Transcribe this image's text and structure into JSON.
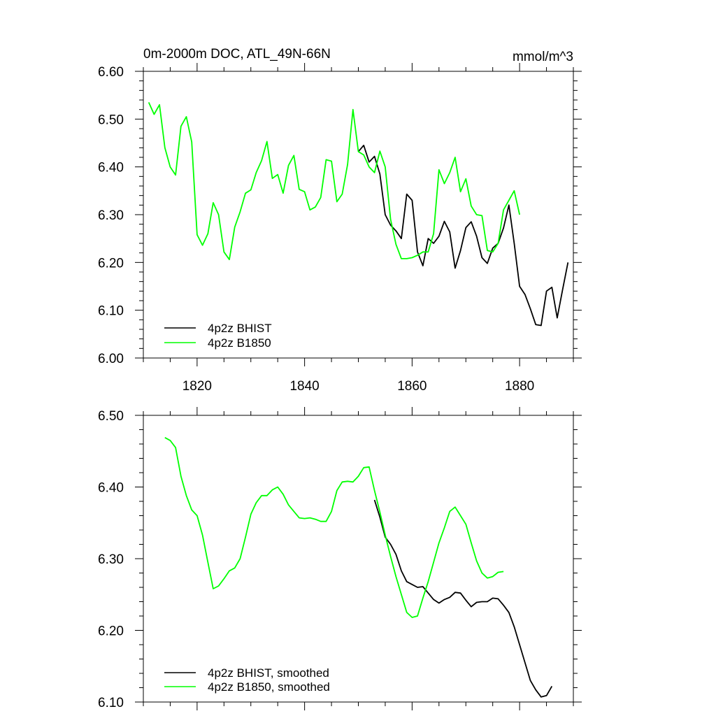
{
  "chart_data": [
    {
      "type": "line",
      "title": "0m-2000m DOC, ATL_49N-66N",
      "units": "mmol/m^3",
      "xlim": [
        1810,
        1890
      ],
      "ylim": [
        6.0,
        6.6
      ],
      "xticks": [
        1820,
        1840,
        1860,
        1880
      ],
      "xtick_labels": [
        "1820",
        "1840",
        "1860",
        "1880"
      ],
      "yticks": [
        6.0,
        6.1,
        6.2,
        6.3,
        6.4,
        6.5,
        6.6
      ],
      "ytick_labels": [
        "6.00",
        "6.10",
        "6.20",
        "6.30",
        "6.40",
        "6.50",
        "6.60"
      ],
      "legend_position": "bottom-left",
      "series": [
        {
          "name": "4p2z BHIST",
          "color": "#000000",
          "x": [
            1850,
            1851,
            1852,
            1853,
            1854,
            1855,
            1856,
            1857,
            1858,
            1859,
            1860,
            1861,
            1862,
            1863,
            1864,
            1865,
            1866,
            1867,
            1868,
            1869,
            1870,
            1871,
            1872,
            1873,
            1874,
            1875,
            1876,
            1877,
            1878,
            1879,
            1880,
            1881,
            1882,
            1883,
            1884,
            1885,
            1886,
            1887,
            1888,
            1889
          ],
          "values": [
            6.432,
            6.445,
            6.41,
            6.422,
            6.385,
            6.3,
            6.278,
            6.266,
            6.25,
            6.343,
            6.33,
            6.222,
            6.193,
            6.25,
            6.24,
            6.255,
            6.286,
            6.264,
            6.188,
            6.225,
            6.273,
            6.285,
            6.255,
            6.21,
            6.198,
            6.23,
            6.24,
            6.272,
            6.32,
            6.24,
            6.15,
            6.133,
            6.103,
            6.07,
            6.068,
            6.14,
            6.148,
            6.084,
            6.143,
            6.2
          ]
        },
        {
          "name": "4p2z B1850",
          "color": "#00ff00",
          "x": [
            1811,
            1812,
            1813,
            1814,
            1815,
            1816,
            1817,
            1818,
            1819,
            1820,
            1821,
            1822,
            1823,
            1824,
            1825,
            1826,
            1827,
            1828,
            1829,
            1830,
            1831,
            1832,
            1833,
            1834,
            1835,
            1836,
            1837,
            1838,
            1839,
            1840,
            1841,
            1842,
            1843,
            1844,
            1845,
            1846,
            1847,
            1848,
            1849,
            1850,
            1851,
            1852,
            1853,
            1854,
            1855,
            1856,
            1857,
            1858,
            1859,
            1860,
            1861,
            1862,
            1863,
            1864,
            1865,
            1866,
            1867,
            1868,
            1869,
            1870,
            1871,
            1872,
            1873,
            1874,
            1875,
            1876,
            1877,
            1878,
            1879,
            1880
          ],
          "values": [
            6.535,
            6.51,
            6.53,
            6.44,
            6.4,
            6.383,
            6.485,
            6.505,
            6.452,
            6.258,
            6.236,
            6.26,
            6.325,
            6.3,
            6.222,
            6.206,
            6.274,
            6.306,
            6.345,
            6.352,
            6.388,
            6.413,
            6.453,
            6.376,
            6.384,
            6.345,
            6.403,
            6.424,
            6.353,
            6.348,
            6.31,
            6.316,
            6.336,
            6.415,
            6.412,
            6.327,
            6.343,
            6.405,
            6.52,
            6.432,
            6.425,
            6.4,
            6.388,
            6.433,
            6.4,
            6.29,
            6.238,
            6.208,
            6.208,
            6.21,
            6.215,
            6.222,
            6.222,
            6.26,
            6.394,
            6.365,
            6.388,
            6.42,
            6.348,
            6.375,
            6.318,
            6.3,
            6.298,
            6.225,
            6.222,
            6.24,
            6.31,
            6.33,
            6.35,
            6.3
          ]
        }
      ]
    },
    {
      "type": "line",
      "xlim": [
        1810,
        1890
      ],
      "ylim": [
        6.1,
        6.5
      ],
      "xticks": [
        1820,
        1840,
        1860,
        1880
      ],
      "yticks": [
        6.1,
        6.2,
        6.3,
        6.4,
        6.5
      ],
      "ytick_labels": [
        "6.10",
        "6.20",
        "6.30",
        "6.40",
        "6.50"
      ],
      "legend_position": "bottom-left",
      "series": [
        {
          "name": "4p2z BHIST, smoothed",
          "color": "#000000",
          "x": [
            1853,
            1854,
            1855,
            1856,
            1857,
            1858,
            1859,
            1860,
            1861,
            1862,
            1863,
            1864,
            1865,
            1866,
            1867,
            1868,
            1869,
            1870,
            1871,
            1872,
            1873,
            1874,
            1875,
            1876,
            1877,
            1878,
            1879,
            1880,
            1881,
            1882,
            1883,
            1884,
            1885,
            1886
          ],
          "values": [
            6.382,
            6.358,
            6.33,
            6.32,
            6.306,
            6.283,
            6.268,
            6.264,
            6.26,
            6.261,
            6.252,
            6.243,
            6.238,
            6.243,
            6.246,
            6.253,
            6.252,
            6.242,
            6.233,
            6.239,
            6.24,
            6.24,
            6.245,
            6.244,
            6.235,
            6.225,
            6.205,
            6.18,
            6.155,
            6.13,
            6.117,
            6.107,
            6.109,
            6.122
          ]
        },
        {
          "name": "4p2z B1850, smoothed",
          "color": "#00ff00",
          "x": [
            1814,
            1815,
            1816,
            1817,
            1818,
            1819,
            1820,
            1821,
            1822,
            1823,
            1824,
            1825,
            1826,
            1827,
            1828,
            1829,
            1830,
            1831,
            1832,
            1833,
            1834,
            1835,
            1836,
            1837,
            1838,
            1839,
            1840,
            1841,
            1842,
            1843,
            1844,
            1845,
            1846,
            1847,
            1848,
            1849,
            1850,
            1851,
            1852,
            1853,
            1854,
            1855,
            1856,
            1857,
            1858,
            1859,
            1860,
            1861,
            1862,
            1863,
            1864,
            1865,
            1866,
            1867,
            1868,
            1869,
            1870,
            1871,
            1872,
            1873,
            1874,
            1875,
            1876,
            1877
          ],
          "values": [
            6.469,
            6.465,
            6.455,
            6.415,
            6.388,
            6.368,
            6.36,
            6.333,
            6.295,
            6.258,
            6.262,
            6.272,
            6.283,
            6.287,
            6.3,
            6.33,
            6.362,
            6.378,
            6.388,
            6.388,
            6.396,
            6.4,
            6.39,
            6.375,
            6.366,
            6.357,
            6.356,
            6.357,
            6.355,
            6.352,
            6.352,
            6.366,
            6.395,
            6.407,
            6.408,
            6.407,
            6.415,
            6.427,
            6.428,
            6.395,
            6.365,
            6.333,
            6.303,
            6.275,
            6.25,
            6.225,
            6.218,
            6.22,
            6.245,
            6.268,
            6.295,
            6.322,
            6.343,
            6.366,
            6.372,
            6.36,
            6.348,
            6.322,
            6.297,
            6.28,
            6.273,
            6.275,
            6.281,
            6.282
          ]
        }
      ]
    }
  ]
}
